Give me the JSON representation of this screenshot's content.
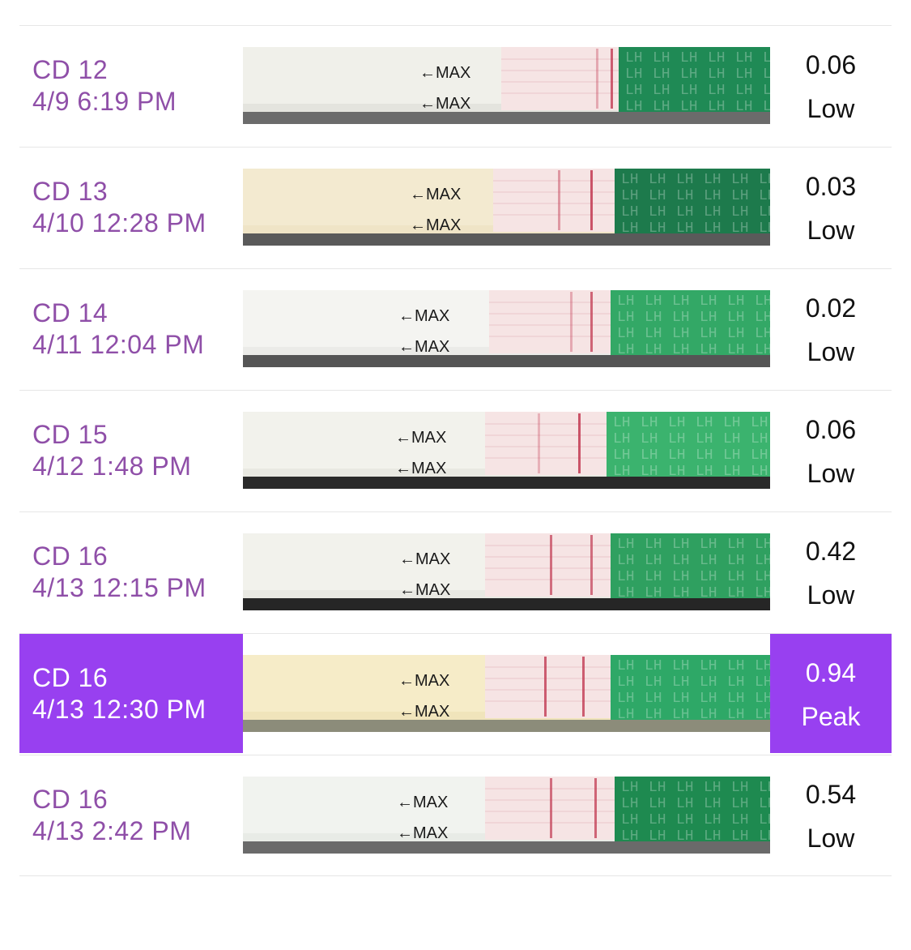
{
  "colors": {
    "accent": "#9840f0",
    "label_text": "#8f4fa8",
    "value_text": "#111111",
    "divider": "#e6e6e6"
  },
  "strip_labels": {
    "arrow_label": "MAX",
    "brand_label": "LH"
  },
  "rows": [
    {
      "cd": "CD 12",
      "datetime": "4/9 6:19 PM",
      "value": "0.06",
      "level": "Low",
      "selected": false,
      "strip_icon": "lh-test-strip-image"
    },
    {
      "cd": "CD 13",
      "datetime": "4/10 12:28 PM",
      "value": "0.03",
      "level": "Low",
      "selected": false,
      "strip_icon": "lh-test-strip-image"
    },
    {
      "cd": "CD 14",
      "datetime": "4/11 12:04 PM",
      "value": "0.02",
      "level": "Low",
      "selected": false,
      "strip_icon": "lh-test-strip-image"
    },
    {
      "cd": "CD 15",
      "datetime": "4/12 1:48 PM",
      "value": "0.06",
      "level": "Low",
      "selected": false,
      "strip_icon": "lh-test-strip-image"
    },
    {
      "cd": "CD 16",
      "datetime": "4/13 12:15 PM",
      "value": "0.42",
      "level": "Low",
      "selected": false,
      "strip_icon": "lh-test-strip-image"
    },
    {
      "cd": "CD 16",
      "datetime": "4/13 12:30 PM",
      "value": "0.94",
      "level": "Peak",
      "selected": true,
      "strip_icon": "lh-test-strip-image"
    },
    {
      "cd": "CD 16",
      "datetime": "4/13 2:42 PM",
      "value": "0.54",
      "level": "Low",
      "selected": false,
      "strip_icon": "lh-test-strip-image"
    }
  ]
}
